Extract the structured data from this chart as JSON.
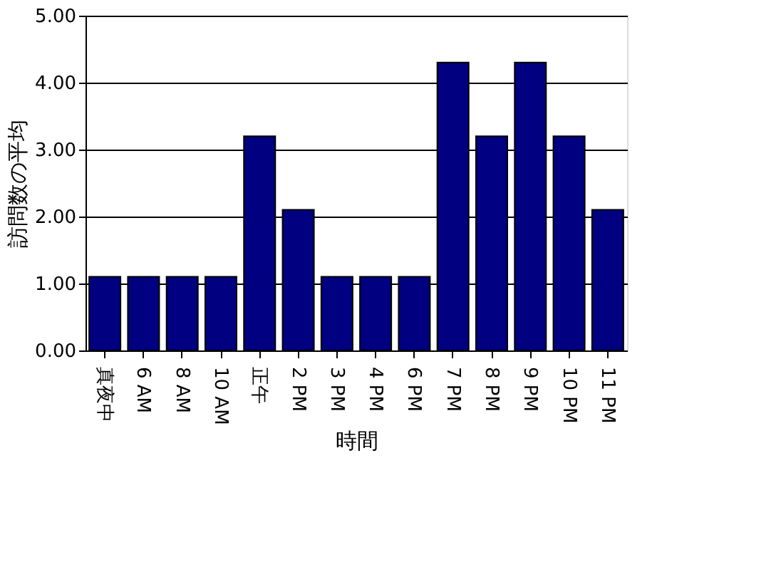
{
  "chart_data": {
    "type": "bar",
    "xlabel": "時間",
    "ylabel": "訪問数の平均",
    "categories": [
      "真夜中",
      "6 AM",
      "8 AM",
      "10 AM",
      "正午",
      "2 PM",
      "3 PM",
      "4 PM",
      "6 PM",
      "7 PM",
      "8 PM",
      "9 PM",
      "10 PM",
      "11 PM"
    ],
    "values": [
      1.1,
      1.1,
      1.1,
      1.1,
      3.2,
      2.1,
      1.1,
      1.1,
      1.1,
      4.3,
      3.2,
      4.3,
      3.2,
      2.1
    ],
    "color": "#000080",
    "ylim": [
      0,
      5
    ],
    "yticks": [
      {
        "value": 0,
        "label": "0.00"
      },
      {
        "value": 1,
        "label": "1.00"
      },
      {
        "value": 2,
        "label": "2.00"
      },
      {
        "value": 3,
        "label": "3.00"
      },
      {
        "value": 4,
        "label": "4.00"
      },
      {
        "value": 5,
        "label": "5.00"
      }
    ],
    "grid": "y"
  }
}
